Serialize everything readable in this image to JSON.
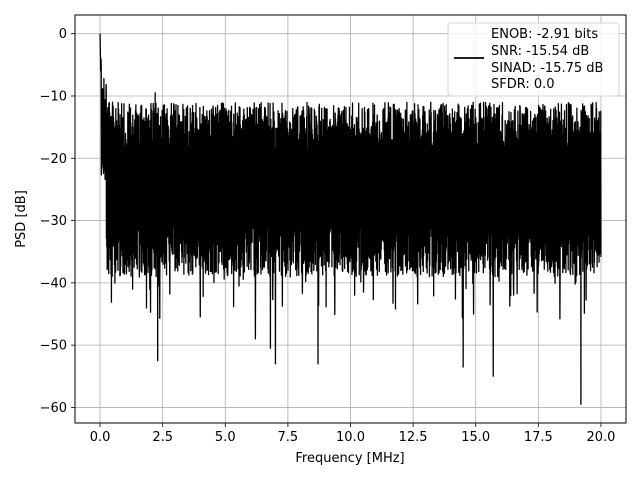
{
  "chart_data": {
    "type": "line",
    "title": "",
    "xlabel": "Frequency [MHz]",
    "ylabel": "PSD [dB]",
    "xlim": [
      -1.0,
      21.0
    ],
    "ylim": [
      -62.5,
      3.0
    ],
    "xticks": [
      0.0,
      2.5,
      5.0,
      7.5,
      10.0,
      12.5,
      15.0,
      17.5,
      20.0
    ],
    "xtick_labels": [
      "0.0",
      "2.5",
      "5.0",
      "7.5",
      "10.0",
      "12.5",
      "15.0",
      "17.5",
      "20.0"
    ],
    "yticks": [
      0,
      -10,
      -20,
      -30,
      -40,
      -50,
      -60
    ],
    "ytick_labels": [
      "0",
      "−10",
      "−20",
      "−30",
      "−40",
      "−50",
      "−60"
    ],
    "grid": true,
    "legend_position": "top-right",
    "series": [
      {
        "name": "ENOB: -2.91 bits\nSNR: -15.54 dB\nSINAD: -15.75 dB\nSFDR: 0.0",
        "color": "#000000",
        "x": [
          0.0,
          20.0
        ],
        "envelope": {
          "typical_band": [
            -35,
            -13
          ],
          "dc_peak": 0.0,
          "notable_peaks": [
            {
              "x": 0.0,
              "y": 0.0
            },
            {
              "x": 0.05,
              "y": -5.0
            },
            {
              "x": 0.5,
              "y": -11.0
            },
            {
              "x": 2.2,
              "y": -9.5
            },
            {
              "x": 3.6,
              "y": -12.0
            }
          ],
          "notable_dips": [
            {
              "x": 1.3,
              "y": -41.0
            },
            {
              "x": 2.3,
              "y": -52.5
            },
            {
              "x": 6.2,
              "y": -49.0
            },
            {
              "x": 6.8,
              "y": -50.5
            },
            {
              "x": 7.0,
              "y": -53.0
            },
            {
              "x": 8.7,
              "y": -53.0
            },
            {
              "x": 14.5,
              "y": -53.5
            },
            {
              "x": 15.7,
              "y": -55.0
            },
            {
              "x": 19.2,
              "y": -59.5
            }
          ]
        }
      }
    ],
    "legend_lines": [
      "ENOB: -2.91 bits",
      "SNR: -15.54 dB",
      "SINAD: -15.75 dB",
      "SFDR: 0.0"
    ]
  }
}
